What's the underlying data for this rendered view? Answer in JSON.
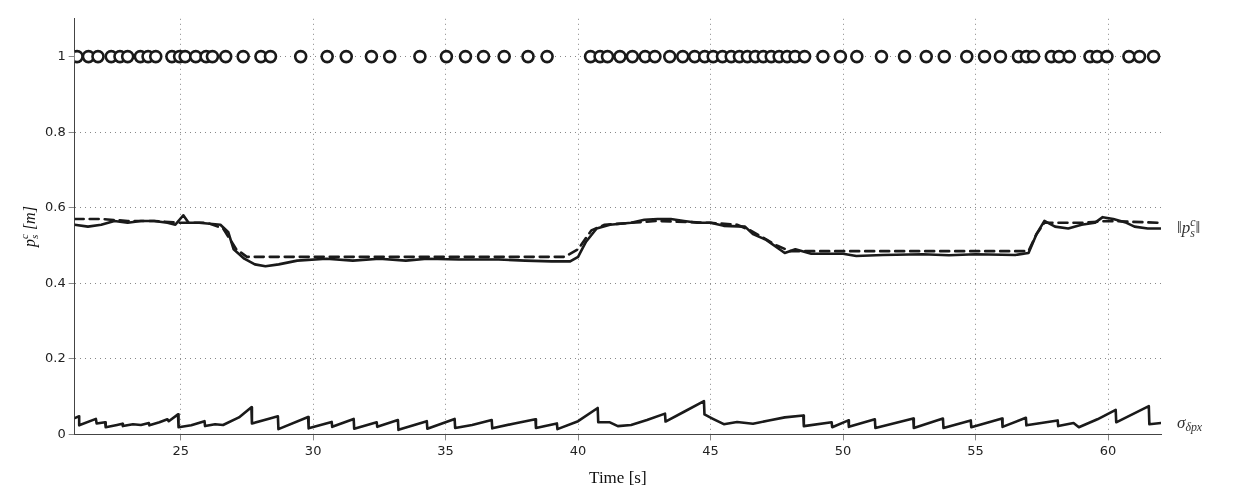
{
  "chart_data": {
    "type": "line",
    "xlabel": "Time [s]",
    "ylabel": "p$_{s}$$^{c}$ [m]",
    "xlim": [
      21,
      62
    ],
    "xticks": [
      25,
      30,
      35,
      40,
      45,
      50,
      55,
      60
    ],
    "ylim": [
      0,
      1.1
    ],
    "yticks": [
      0,
      0.2,
      0.4,
      0.6,
      0.8,
      1
    ],
    "grid": true,
    "legend": false,
    "series": [
      {
        "type": "scatter",
        "marker": "circle",
        "color": "#1a1a1a",
        "x": [
          21.09,
          21.52,
          21.88,
          22.38,
          22.71,
          23.0,
          23.48,
          23.77,
          24.06,
          24.67,
          24.96,
          25.17,
          25.57,
          25.96,
          26.2,
          26.7,
          27.36,
          28.03,
          28.39,
          29.53,
          30.53,
          31.25,
          32.2,
          32.89,
          34.03,
          35.03,
          35.75,
          36.43,
          37.21,
          38.11,
          38.83,
          40.47,
          40.83,
          41.11,
          41.58,
          42.05,
          42.53,
          42.9,
          43.46,
          43.95,
          44.4,
          44.78,
          45.1,
          45.45,
          45.78,
          46.09,
          46.39,
          46.69,
          46.99,
          47.29,
          47.59,
          47.89,
          48.19,
          48.55,
          49.24,
          49.9,
          50.52,
          51.45,
          52.32,
          53.14,
          53.82,
          54.67,
          55.34,
          55.94,
          56.62,
          56.92,
          57.19,
          57.86,
          58.15,
          58.54,
          59.32,
          59.59,
          59.96,
          60.79,
          61.19,
          61.72
        ],
        "values": [
          1,
          1,
          1,
          1,
          1,
          1,
          1,
          1,
          1,
          1,
          1,
          1,
          1,
          1,
          1,
          1,
          1,
          1,
          1,
          1,
          1,
          1,
          1,
          1,
          1,
          1,
          1,
          1,
          1,
          1,
          1,
          1,
          1,
          1,
          1,
          1,
          1,
          1,
          1,
          1,
          1,
          1,
          1,
          1,
          1,
          1,
          1,
          1,
          1,
          1,
          1,
          1,
          1,
          1,
          1,
          1,
          1,
          1,
          1,
          1,
          1,
          1,
          1,
          1,
          1,
          1,
          1,
          1,
          1,
          1,
          1,
          1,
          1,
          1,
          1,
          1
        ]
      },
      {
        "marker": "none",
        "line_style": "dashed",
        "color": "#1a1a1a",
        "x": [
          21,
          22,
          23,
          24,
          25,
          26,
          26.6,
          27.1,
          27.5,
          30,
          35,
          39.5,
          40,
          40.5,
          41,
          42,
          43,
          45,
          46,
          46.5,
          47,
          47.5,
          48,
          50,
          55,
          57,
          57.3,
          57.6,
          59,
          60,
          62
        ],
        "values": [
          0.57,
          0.57,
          0.565,
          0.565,
          0.56,
          0.56,
          0.545,
          0.49,
          0.47,
          0.47,
          0.47,
          0.47,
          0.49,
          0.54,
          0.555,
          0.56,
          0.565,
          0.56,
          0.555,
          0.54,
          0.52,
          0.5,
          0.485,
          0.485,
          0.485,
          0.485,
          0.53,
          0.56,
          0.56,
          0.565,
          0.56
        ]
      },
      {
        "marker": "none",
        "line_style": "solid",
        "name": "‖p$_{s}$$^{c}$‖",
        "color": "#1a1a1a",
        "x": [
          21,
          21.5,
          22,
          22.5,
          23,
          23.5,
          24,
          24.5,
          24.8,
          25.1,
          25.3,
          25.7,
          26.5,
          26.8,
          27,
          27.4,
          27.8,
          28.2,
          28.7,
          29.4,
          30.5,
          31.5,
          32.5,
          33.5,
          34.3,
          35.5,
          37,
          38,
          39,
          39.7,
          40,
          40.3,
          40.7,
          41.2,
          42,
          42.5,
          43,
          43.5,
          44,
          44.5,
          45,
          45.5,
          46.3,
          46.6,
          47.1,
          47.6,
          47.8,
          48.2,
          48.8,
          50,
          50.5,
          51.5,
          53,
          54,
          55,
          56.5,
          57,
          57.3,
          57.6,
          58,
          58.5,
          59,
          59.5,
          59.8,
          60.2,
          60.7,
          61,
          61.5,
          62
        ],
        "values": [
          0.555,
          0.55,
          0.555,
          0.565,
          0.56,
          0.565,
          0.565,
          0.56,
          0.555,
          0.58,
          0.56,
          0.56,
          0.555,
          0.535,
          0.49,
          0.465,
          0.45,
          0.445,
          0.45,
          0.46,
          0.465,
          0.46,
          0.465,
          0.46,
          0.465,
          0.463,
          0.463,
          0.46,
          0.458,
          0.458,
          0.47,
          0.51,
          0.545,
          0.555,
          0.56,
          0.568,
          0.57,
          0.57,
          0.565,
          0.56,
          0.56,
          0.552,
          0.55,
          0.53,
          0.515,
          0.49,
          0.48,
          0.49,
          0.478,
          0.478,
          0.472,
          0.475,
          0.477,
          0.474,
          0.477,
          0.475,
          0.48,
          0.53,
          0.565,
          0.55,
          0.545,
          0.555,
          0.56,
          0.575,
          0.57,
          0.56,
          0.55,
          0.545,
          0.545
        ]
      },
      {
        "marker": "none",
        "line_style": "solid",
        "name": "σ$_{δp}$$_{x}$",
        "color": "#1a1a1a",
        "x": [
          21,
          21.17,
          21.17,
          21.8,
          21.83,
          22.15,
          22.17,
          22.6,
          22.8,
          22.82,
          23.2,
          23.5,
          23.8,
          23.82,
          24.2,
          24.5,
          24.55,
          24.9,
          24.92,
          25.4,
          25.9,
          25.92,
          26.3,
          26.6,
          27.2,
          27.67,
          27.69,
          28.3,
          28.67,
          28.69,
          29.81,
          29.83,
          30.7,
          30.72,
          31.53,
          31.55,
          32.4,
          32.42,
          33.2,
          33.22,
          34.29,
          34.31,
          35.34,
          35.36,
          36.0,
          36.74,
          36.76,
          37.6,
          38.39,
          38.41,
          39.2,
          39.22,
          40.0,
          40.74,
          40.76,
          41.2,
          41.5,
          42.0,
          42.6,
          43.28,
          43.3,
          44.0,
          44.75,
          44.77,
          45.07,
          45.5,
          46.0,
          46.6,
          47.2,
          47.8,
          48.5,
          48.52,
          49.57,
          49.59,
          50.2,
          50.22,
          51.2,
          51.22,
          52.65,
          52.67,
          53.77,
          53.79,
          54.82,
          54.84,
          56.0,
          56.02,
          56.9,
          56.92,
          58.1,
          58.12,
          58.7,
          58.9,
          59.6,
          60.29,
          60.31,
          61.54,
          61.56,
          62
        ],
        "values": [
          0.043,
          0.048,
          0.024,
          0.041,
          0.029,
          0.032,
          0.019,
          0.025,
          0.028,
          0.022,
          0.027,
          0.025,
          0.03,
          0.024,
          0.032,
          0.04,
          0.035,
          0.053,
          0.019,
          0.024,
          0.035,
          0.022,
          0.027,
          0.025,
          0.045,
          0.072,
          0.029,
          0.041,
          0.048,
          0.014,
          0.046,
          0.016,
          0.033,
          0.02,
          0.041,
          0.015,
          0.032,
          0.02,
          0.038,
          0.012,
          0.035,
          0.015,
          0.041,
          0.017,
          0.025,
          0.038,
          0.016,
          0.029,
          0.04,
          0.017,
          0.029,
          0.014,
          0.035,
          0.07,
          0.032,
          0.032,
          0.022,
          0.025,
          0.038,
          0.055,
          0.034,
          0.06,
          0.088,
          0.053,
          0.042,
          0.027,
          0.033,
          0.028,
          0.037,
          0.045,
          0.05,
          0.022,
          0.032,
          0.019,
          0.037,
          0.02,
          0.04,
          0.017,
          0.042,
          0.017,
          0.042,
          0.017,
          0.037,
          0.019,
          0.042,
          0.02,
          0.044,
          0.024,
          0.037,
          0.022,
          0.03,
          0.019,
          0.04,
          0.065,
          0.032,
          0.075,
          0.027,
          0.03
        ]
      }
    ]
  }
}
